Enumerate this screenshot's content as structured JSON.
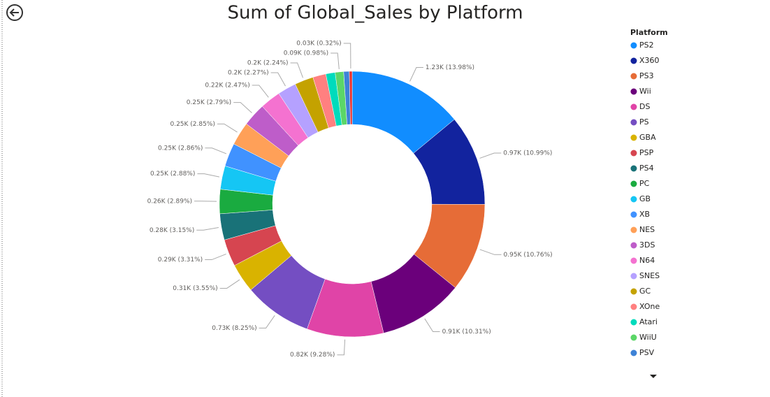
{
  "chart_data": {
    "type": "donut",
    "title": "Sum of Global_Sales by Platform",
    "legend_title": "Platform",
    "legend_position": "right",
    "categories": [
      "PS2",
      "X360",
      "PS3",
      "Wii",
      "DS",
      "PS",
      "GBA",
      "PSP",
      "PS4",
      "PC",
      "GB",
      "XB",
      "NES",
      "3DS",
      "N64",
      "SNES",
      "GC",
      "XOne",
      "Atari",
      "WiiU",
      "PSV",
      null
    ],
    "values": [
      1230,
      970,
      950,
      910,
      820,
      730,
      310,
      290,
      280,
      260,
      250,
      250,
      250,
      250,
      220,
      200,
      200,
      140,
      100,
      90,
      60,
      30
    ],
    "value_labels": [
      "1.23K (13.98%)",
      "0.97K (10.99%)",
      "0.95K (10.76%)",
      "0.91K (10.31%)",
      "0.82K (9.28%)",
      "0.73K (8.25%)",
      "0.31K (3.55%)",
      "0.29K (3.31%)",
      "0.28K (3.15%)",
      "0.26K (2.89%)",
      "0.25K (2.88%)",
      "0.25K (2.86%)",
      "0.25K (2.85%)",
      "0.25K (2.79%)",
      "0.22K (2.47%)",
      "0.2K (2.27%)",
      "0.2K (2.24%)",
      null,
      null,
      "0.09K (0.98%)",
      null,
      "0.03K (0.32%)"
    ],
    "colors": [
      "#118DFF",
      "#12239E",
      "#E66C37",
      "#6B007B",
      "#E044A7",
      "#744EC2",
      "#D9B300",
      "#D64550",
      "#197278",
      "#1AAB40",
      "#15C6F4",
      "#4092FF",
      "#FFA058",
      "#BE5DC9",
      "#F472D0",
      "#B5A1FF",
      "#C4A200",
      "#FF8080",
      "#00DBBC",
      "#5BD667",
      "#3D82D6",
      "#E62E2E"
    ]
  }
}
